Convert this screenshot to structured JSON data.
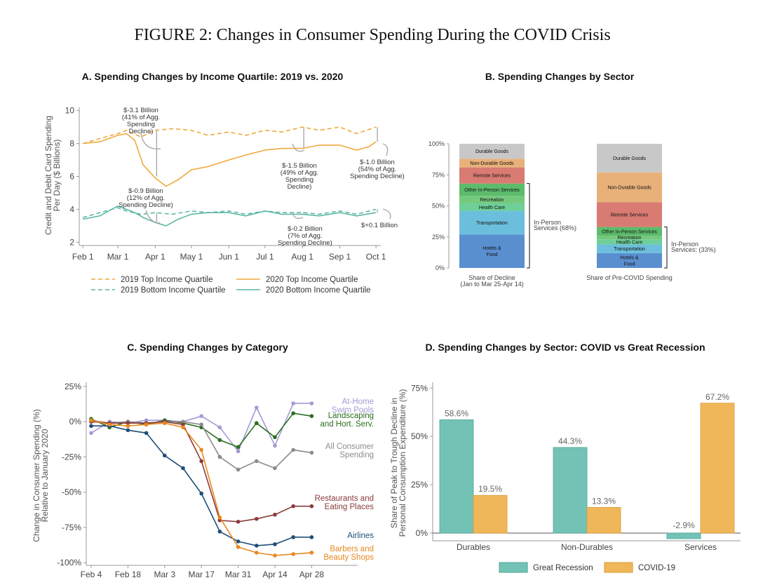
{
  "figure_title": "FIGURE 2: Changes in Consumer Spending During the COVID Crisis",
  "chart_data": [
    {
      "panel": "A",
      "type": "line",
      "title": "A. Spending Changes by Income Quartile: 2019 vs. 2020",
      "ylabel": "Credit and Debit Card Spending Per Day ($ Billions)",
      "ylabel_lines": [
        "Credit and Debit Card Spending",
        "Per Day ($ Billions)"
      ],
      "xlabel": "",
      "x_ticks": [
        "Feb 1",
        "Mar 1",
        "Apr 1",
        "May 1",
        "Jun 1",
        "Jul 1",
        "Aug 1",
        "Sep 1",
        "Oct 1"
      ],
      "y_ticks": [
        2,
        4,
        6,
        8,
        10
      ],
      "xlim": [
        "Jan 29",
        "Oct 5"
      ],
      "ylim": [
        1.8,
        10.2
      ],
      "series": [
        {
          "name": "2019 Top Income Quartile",
          "color": "#f0a93a",
          "dash": true,
          "x": [
            "Feb 1",
            "Feb 15",
            "Mar 1",
            "Mar 8",
            "Mar 20",
            "Apr 1",
            "Apr 15",
            "May 1",
            "May 15",
            "Jun 1",
            "Jun 15",
            "Jul 1",
            "Jul 15",
            "Aug 1",
            "Aug 15",
            "Sep 1",
            "Sep 15",
            "Oct 1"
          ],
          "values": [
            8.0,
            8.3,
            8.6,
            8.8,
            8.4,
            8.8,
            8.9,
            8.8,
            8.5,
            8.7,
            8.5,
            8.8,
            8.7,
            9.0,
            8.8,
            9.0,
            8.6,
            9.0
          ]
        },
        {
          "name": "2020 Top Income Quartile",
          "color": "#f0a93a",
          "dash": false,
          "x": [
            "Feb 1",
            "Feb 15",
            "Mar 1",
            "Mar 8",
            "Mar 15",
            "Mar 22",
            "Apr 1",
            "Apr 10",
            "Apr 20",
            "May 1",
            "May 15",
            "Jun 1",
            "Jun 15",
            "Jul 1",
            "Jul 15",
            "Aug 1",
            "Aug 15",
            "Sep 1",
            "Sep 15",
            "Sep 25",
            "Oct 1"
          ],
          "values": [
            8.0,
            8.1,
            8.5,
            8.6,
            8.2,
            6.7,
            5.9,
            5.4,
            5.8,
            6.4,
            6.6,
            7.0,
            7.3,
            7.6,
            7.7,
            7.7,
            7.9,
            7.9,
            7.6,
            7.8,
            8.1
          ]
        },
        {
          "name": "2019 Bottom Income Quartile",
          "color": "#5db8a6",
          "dash": true,
          "x": [
            "Feb 1",
            "Feb 15",
            "Mar 1",
            "Mar 8",
            "Mar 20",
            "Apr 1",
            "Apr 15",
            "May 1",
            "May 15",
            "Jun 1",
            "Jun 15",
            "Jul 1",
            "Jul 15",
            "Aug 1",
            "Aug 15",
            "Sep 1",
            "Sep 15",
            "Oct 1"
          ],
          "values": [
            3.5,
            3.8,
            4.1,
            3.9,
            3.7,
            3.8,
            3.7,
            3.9,
            3.8,
            3.9,
            3.7,
            3.9,
            3.8,
            3.8,
            3.7,
            3.9,
            3.7,
            4.0
          ]
        },
        {
          "name": "2020 Bottom Income Quartile",
          "color": "#5db8a6",
          "dash": false,
          "x": [
            "Feb 1",
            "Feb 15",
            "Mar 1",
            "Mar 8",
            "Mar 15",
            "Mar 22",
            "Apr 1",
            "Apr 10",
            "Apr 20",
            "May 1",
            "May 15",
            "Jun 1",
            "Jun 15",
            "Jul 1",
            "Jul 15",
            "Aug 1",
            "Aug 15",
            "Sep 1",
            "Sep 15",
            "Oct 1"
          ],
          "values": [
            3.4,
            3.6,
            4.2,
            4.0,
            3.8,
            3.5,
            3.2,
            3.0,
            3.4,
            3.7,
            3.8,
            3.8,
            3.6,
            3.9,
            3.7,
            3.7,
            3.6,
            3.8,
            3.6,
            3.8
          ]
        }
      ],
      "annotations": [
        {
          "lines": [
            "$-3.1 Billion",
            "(41% of Agg.",
            "Spending",
            "Decline)"
          ]
        },
        {
          "lines": [
            "$-0.9 Billion",
            "(12% of Agg.",
            "Spending Decline)"
          ]
        },
        {
          "lines": [
            "$-1.5 Billion",
            "(49% of Agg.",
            "Spending",
            "Decline)"
          ]
        },
        {
          "lines": [
            "$-0.2 Billion",
            "(7% of Agg.",
            "Spending Decline)"
          ]
        },
        {
          "lines": [
            "$-1.0 Billion",
            "(54% of Agg.",
            "Spending Decline)"
          ]
        },
        {
          "lines": [
            "$+0.1 Billion"
          ]
        }
      ]
    },
    {
      "panel": "B",
      "type": "bar",
      "stacked": true,
      "title": "B. Spending Changes by Sector",
      "y_ticks": [
        "0%",
        "25%",
        "50%",
        "75%",
        "100%"
      ],
      "ylim": [
        0,
        100
      ],
      "categories": [
        "Share of Decline (Jan to Mar 25-Apr 14)",
        "Share of Pre-COVID Spending"
      ],
      "category_lines": [
        [
          "Share of Decline",
          "(Jan to Mar 25-Apr 14)"
        ],
        [
          "Share of Pre-COVID Spending"
        ]
      ],
      "series": [
        {
          "name": "Hotels & Food",
          "label_lines": [
            "Hotels &",
            "Food"
          ],
          "color": "#5a8fcf",
          "values": [
            27,
            12
          ]
        },
        {
          "name": "Transportation",
          "label_lines": [
            "Transportation"
          ],
          "color": "#6bbfdc",
          "values": [
            19,
            7
          ]
        },
        {
          "name": "Health Care",
          "label_lines": [
            "Health Care"
          ],
          "color": "#6ecf98",
          "values": [
            6,
            4
          ]
        },
        {
          "name": "Recreation",
          "label_lines": [
            "Recreation"
          ],
          "color": "#75c97d",
          "values": [
            6,
            3
          ]
        },
        {
          "name": "Other In-Person Services",
          "label_lines": [
            "Other In-Person Services"
          ],
          "color": "#5dbb6c",
          "values": [
            10,
            7
          ]
        },
        {
          "name": "Remote Services",
          "label_lines": [
            "Remote Services"
          ],
          "color": "#d97b72",
          "values": [
            13,
            20
          ]
        },
        {
          "name": "Non-Durable Goods",
          "label_lines": [
            "Non-Durable Goods"
          ],
          "color": "#e9b17a",
          "values": [
            7,
            24
          ]
        },
        {
          "name": "Durable Goods",
          "label_lines": [
            "Durable Goods"
          ],
          "color": "#c8c8c8",
          "values": [
            12,
            23
          ]
        }
      ],
      "brackets": [
        {
          "lines": [
            "In-Person",
            "Services (68%)"
          ]
        },
        {
          "lines": [
            "In-Person",
            "Services: (33%)"
          ]
        }
      ]
    },
    {
      "panel": "C",
      "type": "line",
      "title": "C. Spending Changes by Category",
      "ylabel": "Change in Consumer Spending (%) Relative to January 2020",
      "ylabel_lines": [
        "Change in Consumer Spending (%)",
        "Relative to January 2020"
      ],
      "xlabel": "",
      "x_ticks": [
        "Feb 4",
        "Feb 18",
        "Mar 3",
        "Mar 17",
        "Mar 31",
        "Apr 14",
        "Apr 28"
      ],
      "y_ticks": [
        "25%",
        "0%",
        "-25%",
        "-50%",
        "-75%",
        "-100%"
      ],
      "y_tick_values": [
        25,
        0,
        -25,
        -50,
        -75,
        -100
      ],
      "ylim": [
        -102,
        28
      ],
      "x": [
        "Feb 4",
        "Feb 11",
        "Feb 18",
        "Feb 25",
        "Mar 3",
        "Mar 10",
        "Mar 17",
        "Mar 24",
        "Mar 31",
        "Apr 7",
        "Apr 14",
        "Apr 21",
        "Apr 28"
      ],
      "series": [
        {
          "name": "At-Home Swim Pools",
          "label_lines": [
            "At-Home",
            "Swim Pools"
          ],
          "color": "#a39ad6",
          "values": [
            -8,
            0,
            -1,
            1,
            1,
            0,
            4,
            -4,
            -21,
            10,
            -17,
            13,
            13
          ]
        },
        {
          "name": "Landscaping and Hort. Serv.",
          "label_lines": [
            "Landscaping",
            "and Hort. Serv."
          ],
          "color": "#2c6e1f",
          "values": [
            2,
            -4,
            0,
            -2,
            1,
            -1,
            -4,
            -13,
            -18,
            -1,
            -11,
            6,
            4
          ]
        },
        {
          "name": "All Consumer Spending",
          "label_lines": [
            "All Consumer",
            "Spending"
          ],
          "color": "#8c8c8c",
          "values": [
            1,
            -1,
            0,
            -1,
            0,
            0,
            -2,
            -25,
            -34,
            -28,
            -33,
            -20,
            -22
          ]
        },
        {
          "name": "Restaurants and Eating Places",
          "label_lines": [
            "Restaurants and",
            "Eating Places"
          ],
          "color": "#8b3a3a",
          "values": [
            0,
            -1,
            -1,
            -1,
            0,
            -2,
            -28,
            -70,
            -71,
            -69,
            -66,
            -60,
            -60
          ]
        },
        {
          "name": "Airlines",
          "label_lines": [
            "Airlines"
          ],
          "color": "#1f4e79",
          "values": [
            -3,
            -3,
            -6,
            -8,
            -24,
            -33,
            -51,
            -78,
            -85,
            -88,
            -87,
            -82,
            -82
          ]
        },
        {
          "name": "Barbers and Beauty Shops",
          "label_lines": [
            "Barbers and",
            "Beauty Shops"
          ],
          "color": "#e8891e",
          "values": [
            1,
            -2,
            -3,
            -2,
            -1,
            -4,
            -20,
            -68,
            -89,
            -93,
            -95,
            -94,
            -93
          ]
        }
      ]
    },
    {
      "panel": "D",
      "type": "bar",
      "title": "D. Spending Changes by Sector: COVID vs Great Recession",
      "ylabel": "Share of Peak to Trough Decline in Personal Consumption Expenditure (%)",
      "ylabel_lines": [
        "Share of Peak to Trough Decline in",
        "Personal Consumption Expenditure (%)"
      ],
      "categories": [
        "Durables",
        "Non-Durables",
        "Services"
      ],
      "y_ticks": [
        "0%",
        "25%",
        "50%",
        "75%"
      ],
      "y_tick_values": [
        0,
        25,
        50,
        75
      ],
      "ylim": [
        -4,
        78
      ],
      "series": [
        {
          "name": "Great Recession",
          "color": "#72c3b6",
          "values": [
            58.6,
            44.3,
            -2.9
          ],
          "labels": [
            "58.6%",
            "44.3%",
            "-2.9%"
          ]
        },
        {
          "name": "COVID-19",
          "color": "#f0b75a",
          "values": [
            19.5,
            13.3,
            67.2
          ],
          "labels": [
            "19.5%",
            "13.3%",
            "67.2%"
          ]
        }
      ]
    }
  ]
}
